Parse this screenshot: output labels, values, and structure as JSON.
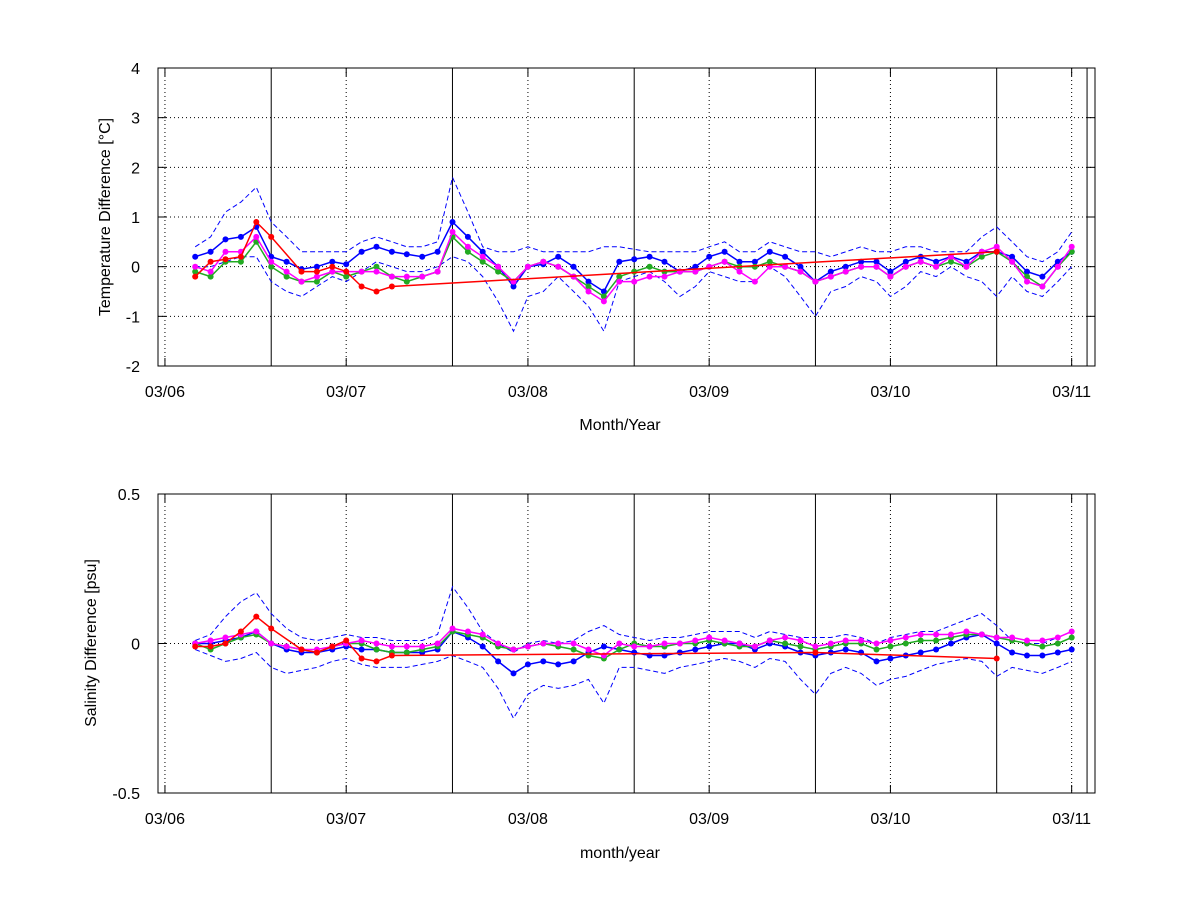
{
  "colors": {
    "blue": "#0000ff",
    "green": "#22aa22",
    "magenta": "#ff00ff",
    "red": "#ff0000",
    "darkred": "#8b0000"
  },
  "chart_data": [
    {
      "type": "line",
      "title": "",
      "xlabel": "Month/Year",
      "ylabel": "Temperature Difference [°C]",
      "xlim": [
        "2006-03-01",
        "2011-05-01"
      ],
      "ylim": [
        -2,
        4
      ],
      "grid": true,
      "x_ticks": [
        "03/06",
        "03/07",
        "03/08",
        "03/09",
        "03/10",
        "03/11"
      ],
      "y_ticks": [
        "-2",
        "-1",
        "0",
        "1",
        "2",
        "3",
        "4"
      ],
      "vertical_lines": [
        "2006-10-15",
        "2007-10-15",
        "2008-10-15",
        "2009-10-15",
        "2010-10-15",
        "2011-04-15"
      ],
      "x": [
        "2006-05-15",
        "2006-06-15",
        "2006-07-15",
        "2006-08-15",
        "2006-09-15",
        "2006-10-15",
        "2006-11-15",
        "2006-12-15",
        "2007-01-15",
        "2007-02-15",
        "2007-03-15",
        "2007-04-15",
        "2007-05-15",
        "2007-06-15",
        "2007-07-15",
        "2007-08-15",
        "2007-09-15",
        "2007-10-15",
        "2007-11-15",
        "2007-12-15",
        "2008-01-15",
        "2008-02-15",
        "2008-03-15",
        "2008-04-15",
        "2008-05-15",
        "2008-06-15",
        "2008-07-15",
        "2008-08-15",
        "2008-09-15",
        "2008-10-15",
        "2008-11-15",
        "2008-12-15",
        "2009-01-15",
        "2009-02-15",
        "2009-03-15",
        "2009-04-15",
        "2009-05-15",
        "2009-06-15",
        "2009-07-15",
        "2009-08-15",
        "2009-09-15",
        "2009-10-15",
        "2009-11-15",
        "2009-12-15",
        "2010-01-15",
        "2010-02-15",
        "2010-03-15",
        "2010-04-15",
        "2010-05-15",
        "2010-06-15",
        "2010-07-15",
        "2010-08-15",
        "2010-09-15",
        "2010-10-15",
        "2010-11-15",
        "2010-12-15",
        "2011-01-15",
        "2011-02-15",
        "2011-03-15"
      ],
      "series": [
        {
          "color": "blue",
          "style": "markers",
          "values": [
            0.2,
            0.3,
            0.55,
            0.6,
            0.8,
            0.2,
            0.1,
            -0.05,
            0.0,
            0.1,
            0.05,
            0.3,
            0.4,
            0.3,
            0.25,
            0.2,
            0.3,
            0.9,
            0.6,
            0.3,
            0.0,
            -0.4,
            0.0,
            0.05,
            0.2,
            0.0,
            -0.3,
            -0.5,
            0.1,
            0.15,
            0.2,
            0.1,
            -0.1,
            0.0,
            0.2,
            0.3,
            0.1,
            0.1,
            0.3,
            0.2,
            0.0,
            -0.3,
            -0.1,
            0.0,
            0.1,
            0.1,
            -0.1,
            0.1,
            0.2,
            0.1,
            0.2,
            0.1,
            0.3,
            0.3,
            0.2,
            -0.1,
            -0.2,
            0.1,
            0.3
          ]
        },
        {
          "color": "blue",
          "style": "dashed-upper",
          "values": [
            0.4,
            0.6,
            1.1,
            1.3,
            1.6,
            0.9,
            0.6,
            0.3,
            0.3,
            0.3,
            0.3,
            0.5,
            0.6,
            0.5,
            0.4,
            0.4,
            0.5,
            1.8,
            1.1,
            0.4,
            0.3,
            0.3,
            0.4,
            0.3,
            0.3,
            0.3,
            0.3,
            0.4,
            0.4,
            0.35,
            0.3,
            0.3,
            0.3,
            0.3,
            0.4,
            0.5,
            0.3,
            0.3,
            0.5,
            0.4,
            0.3,
            0.3,
            0.2,
            0.3,
            0.4,
            0.3,
            0.3,
            0.4,
            0.4,
            0.3,
            0.3,
            0.3,
            0.6,
            0.8,
            0.5,
            0.2,
            0.1,
            0.3,
            0.7
          ]
        },
        {
          "color": "blue",
          "style": "dashed-lower",
          "values": [
            0.0,
            0.0,
            0.1,
            0.2,
            0.2,
            -0.3,
            -0.5,
            -0.6,
            -0.4,
            -0.2,
            -0.3,
            -0.1,
            0.1,
            0.0,
            -0.1,
            -0.1,
            0.0,
            0.2,
            0.1,
            -0.2,
            -0.7,
            -1.3,
            -0.6,
            -0.5,
            -0.2,
            -0.5,
            -0.8,
            -1.3,
            -0.3,
            -0.2,
            -0.1,
            -0.3,
            -0.6,
            -0.4,
            -0.1,
            -0.2,
            -0.3,
            -0.3,
            0.0,
            -0.2,
            -0.6,
            -1.0,
            -0.5,
            -0.4,
            -0.2,
            -0.3,
            -0.6,
            -0.4,
            -0.1,
            -0.2,
            0.0,
            -0.2,
            -0.3,
            -0.6,
            -0.2,
            -0.5,
            -0.6,
            -0.3,
            0.0
          ]
        },
        {
          "color": "green",
          "style": "markers",
          "values": [
            -0.1,
            -0.2,
            0.1,
            0.1,
            0.5,
            0.0,
            -0.2,
            -0.3,
            -0.3,
            -0.1,
            -0.2,
            -0.1,
            0.0,
            -0.2,
            -0.3,
            -0.2,
            -0.1,
            0.6,
            0.3,
            0.1,
            -0.1,
            -0.3,
            0.0,
            0.1,
            0.0,
            -0.2,
            -0.4,
            -0.6,
            -0.2,
            -0.1,
            0.0,
            -0.1,
            -0.1,
            -0.1,
            0.0,
            0.1,
            0.0,
            0.0,
            0.1,
            0.0,
            -0.1,
            -0.3,
            -0.2,
            -0.1,
            0.0,
            0.0,
            -0.2,
            0.0,
            0.1,
            0.0,
            0.1,
            0.0,
            0.2,
            0.3,
            0.1,
            -0.2,
            -0.4,
            0.0,
            0.3
          ]
        },
        {
          "color": "magenta",
          "style": "markers",
          "values": [
            0.0,
            -0.1,
            0.3,
            0.3,
            0.6,
            0.1,
            -0.1,
            -0.3,
            -0.2,
            -0.1,
            -0.1,
            -0.1,
            -0.1,
            -0.2,
            -0.2,
            -0.2,
            -0.1,
            0.7,
            0.4,
            0.2,
            0.0,
            -0.3,
            0.0,
            0.1,
            0.0,
            -0.2,
            -0.5,
            -0.7,
            -0.3,
            -0.3,
            -0.2,
            -0.2,
            -0.1,
            -0.1,
            0.0,
            0.1,
            -0.1,
            -0.3,
            0.0,
            0.0,
            -0.1,
            -0.3,
            -0.2,
            -0.1,
            0.0,
            0.0,
            -0.2,
            0.0,
            0.1,
            0.0,
            0.2,
            0.0,
            0.3,
            0.4,
            0.1,
            -0.3,
            -0.4,
            0.0,
            0.4
          ]
        },
        {
          "color": "red",
          "style": "markers",
          "values": [
            -0.2,
            0.1,
            0.15,
            0.2,
            0.9,
            0.6,
            null,
            -0.1,
            -0.1,
            0.0,
            -0.1,
            -0.4,
            -0.5,
            -0.4,
            null,
            null,
            null,
            null,
            null,
            null,
            null,
            null,
            null,
            null,
            null,
            null,
            null,
            null,
            null,
            null,
            null,
            null,
            null,
            null,
            null,
            null,
            null,
            null,
            null,
            null,
            null,
            null,
            null,
            null,
            null,
            null,
            null,
            null,
            null,
            null,
            null,
            null,
            null,
            0.3,
            null,
            null,
            null,
            null,
            null
          ]
        }
      ]
    },
    {
      "type": "line",
      "title": "",
      "xlabel": "month/year",
      "ylabel": "Salinity Difference [psu]",
      "xlim": [
        "2006-03-01",
        "2011-05-01"
      ],
      "ylim": [
        -0.5,
        0.5
      ],
      "grid": true,
      "x_ticks": [
        "03/06",
        "03/07",
        "03/08",
        "03/09",
        "03/10",
        "03/11"
      ],
      "y_ticks": [
        "-0.5",
        "0",
        "0.5"
      ],
      "vertical_lines": [
        "2006-10-15",
        "2007-10-15",
        "2008-10-15",
        "2009-10-15",
        "2010-10-15",
        "2011-04-15"
      ],
      "x": [
        "2006-05-15",
        "2006-06-15",
        "2006-07-15",
        "2006-08-15",
        "2006-09-15",
        "2006-10-15",
        "2006-11-15",
        "2006-12-15",
        "2007-01-15",
        "2007-02-15",
        "2007-03-15",
        "2007-04-15",
        "2007-05-15",
        "2007-06-15",
        "2007-07-15",
        "2007-08-15",
        "2007-09-15",
        "2007-10-15",
        "2007-11-15",
        "2007-12-15",
        "2008-01-15",
        "2008-02-15",
        "2008-03-15",
        "2008-04-15",
        "2008-05-15",
        "2008-06-15",
        "2008-07-15",
        "2008-08-15",
        "2008-09-15",
        "2008-10-15",
        "2008-11-15",
        "2008-12-15",
        "2009-01-15",
        "2009-02-15",
        "2009-03-15",
        "2009-04-15",
        "2009-05-15",
        "2009-06-15",
        "2009-07-15",
        "2009-08-15",
        "2009-09-15",
        "2009-10-15",
        "2009-11-15",
        "2009-12-15",
        "2010-01-15",
        "2010-02-15",
        "2010-03-15",
        "2010-04-15",
        "2010-05-15",
        "2010-06-15",
        "2010-07-15",
        "2010-08-15",
        "2010-09-15",
        "2010-10-15",
        "2010-11-15",
        "2010-12-15",
        "2011-01-15",
        "2011-02-15",
        "2011-03-15"
      ],
      "series": [
        {
          "color": "blue",
          "style": "markers",
          "values": [
            0.0,
            0.0,
            0.01,
            0.02,
            0.04,
            0.0,
            -0.02,
            -0.03,
            -0.03,
            -0.02,
            -0.01,
            -0.02,
            -0.02,
            -0.03,
            -0.03,
            -0.03,
            -0.02,
            0.04,
            0.02,
            -0.01,
            -0.06,
            -0.1,
            -0.07,
            -0.06,
            -0.07,
            -0.06,
            -0.03,
            -0.01,
            -0.02,
            -0.03,
            -0.04,
            -0.04,
            -0.03,
            -0.02,
            -0.01,
            0.0,
            0.0,
            -0.02,
            0.0,
            -0.01,
            -0.03,
            -0.04,
            -0.03,
            -0.02,
            -0.03,
            -0.06,
            -0.05,
            -0.04,
            -0.03,
            -0.02,
            0.0,
            0.02,
            0.03,
            0.0,
            -0.03,
            -0.04,
            -0.04,
            -0.03,
            -0.02
          ]
        },
        {
          "color": "blue",
          "style": "dashed-upper",
          "values": [
            0.01,
            0.03,
            0.09,
            0.14,
            0.17,
            0.1,
            0.05,
            0.02,
            0.01,
            0.02,
            0.03,
            0.02,
            0.02,
            0.01,
            0.01,
            0.01,
            0.03,
            0.19,
            0.12,
            0.04,
            0.0,
            -0.03,
            0.0,
            0.01,
            0.0,
            0.01,
            0.04,
            0.06,
            0.03,
            0.02,
            0.01,
            0.02,
            0.02,
            0.03,
            0.04,
            0.04,
            0.04,
            0.02,
            0.04,
            0.03,
            0.02,
            0.02,
            0.02,
            0.03,
            0.02,
            0.0,
            0.02,
            0.03,
            0.04,
            0.04,
            0.06,
            0.08,
            0.1,
            0.06,
            0.01,
            0.0,
            0.0,
            0.02,
            0.04
          ]
        },
        {
          "color": "blue",
          "style": "dashed-lower",
          "values": [
            -0.02,
            -0.04,
            -0.06,
            -0.05,
            -0.03,
            -0.08,
            -0.1,
            -0.09,
            -0.08,
            -0.06,
            -0.05,
            -0.07,
            -0.08,
            -0.08,
            -0.08,
            -0.07,
            -0.06,
            -0.04,
            -0.06,
            -0.08,
            -0.15,
            -0.25,
            -0.17,
            -0.14,
            -0.15,
            -0.14,
            -0.12,
            -0.2,
            -0.08,
            -0.08,
            -0.09,
            -0.1,
            -0.08,
            -0.07,
            -0.06,
            -0.05,
            -0.06,
            -0.08,
            -0.05,
            -0.06,
            -0.12,
            -0.17,
            -0.1,
            -0.08,
            -0.1,
            -0.14,
            -0.12,
            -0.11,
            -0.09,
            -0.07,
            -0.06,
            -0.05,
            -0.06,
            -0.11,
            -0.08,
            -0.09,
            -0.1,
            -0.08,
            -0.06
          ]
        },
        {
          "color": "green",
          "style": "markers",
          "values": [
            0.0,
            -0.02,
            0.0,
            0.02,
            0.03,
            0.0,
            -0.01,
            -0.02,
            -0.03,
            -0.01,
            0.0,
            0.0,
            -0.02,
            -0.03,
            -0.03,
            -0.02,
            -0.01,
            0.04,
            0.03,
            0.02,
            -0.01,
            -0.02,
            -0.01,
            0.0,
            -0.01,
            -0.02,
            -0.04,
            -0.05,
            -0.02,
            0.0,
            -0.01,
            -0.01,
            0.0,
            0.0,
            0.01,
            0.0,
            -0.01,
            -0.01,
            0.01,
            0.0,
            -0.01,
            -0.02,
            -0.01,
            0.0,
            0.0,
            -0.02,
            -0.01,
            0.0,
            0.01,
            0.01,
            0.02,
            0.03,
            0.03,
            0.02,
            0.01,
            0.0,
            -0.01,
            0.0,
            0.02
          ]
        },
        {
          "color": "magenta",
          "style": "markers",
          "values": [
            0.0,
            0.01,
            0.02,
            0.03,
            0.04,
            0.0,
            -0.01,
            -0.02,
            -0.02,
            -0.01,
            0.0,
            0.01,
            0.0,
            -0.01,
            -0.01,
            -0.01,
            0.0,
            0.05,
            0.04,
            0.03,
            0.0,
            -0.02,
            -0.01,
            0.0,
            0.0,
            0.0,
            -0.02,
            -0.04,
            0.0,
            -0.01,
            -0.01,
            0.0,
            0.0,
            0.01,
            0.02,
            0.01,
            0.0,
            -0.01,
            0.01,
            0.02,
            0.01,
            -0.01,
            0.0,
            0.01,
            0.01,
            0.0,
            0.01,
            0.02,
            0.03,
            0.03,
            0.03,
            0.04,
            0.03,
            0.02,
            0.02,
            0.01,
            0.01,
            0.02,
            0.04
          ]
        },
        {
          "color": "red",
          "style": "markers",
          "values": [
            -0.01,
            -0.01,
            0.0,
            0.04,
            0.09,
            0.05,
            null,
            -0.02,
            -0.03,
            -0.01,
            0.01,
            -0.05,
            -0.06,
            -0.04,
            null,
            null,
            null,
            null,
            null,
            null,
            null,
            null,
            null,
            null,
            null,
            null,
            null,
            null,
            null,
            null,
            null,
            null,
            null,
            null,
            null,
            null,
            null,
            null,
            null,
            null,
            null,
            -0.03,
            null,
            null,
            null,
            null,
            null,
            null,
            null,
            null,
            null,
            null,
            null,
            -0.05,
            null,
            null,
            null,
            null,
            null
          ]
        }
      ]
    }
  ]
}
